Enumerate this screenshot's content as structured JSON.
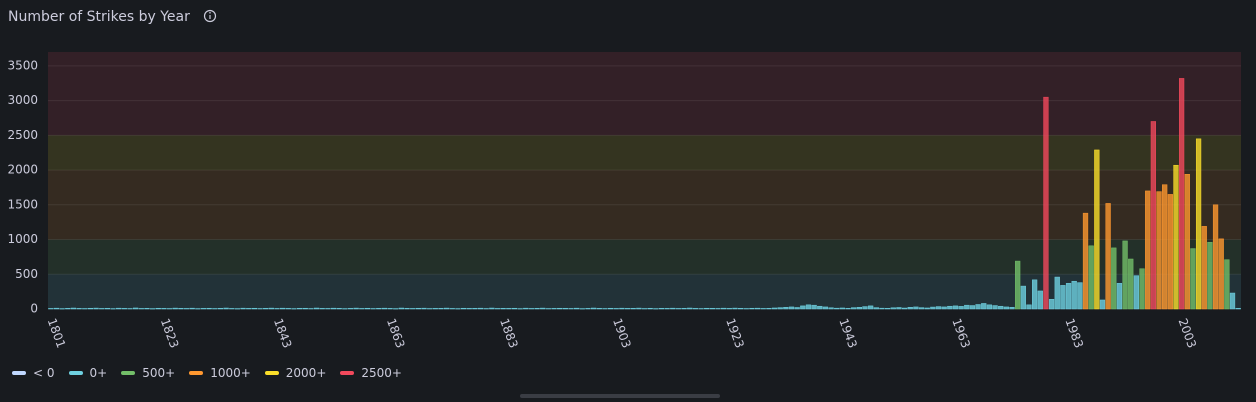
{
  "chart_data": {
    "type": "bar",
    "title": "Number of Strikes by Year",
    "categories": [
      "1801",
      null,
      null,
      null,
      null,
      null,
      null,
      null,
      null,
      null,
      null,
      null,
      null,
      null,
      null,
      null,
      null,
      null,
      null,
      null,
      "1823",
      null,
      null,
      null,
      null,
      null,
      null,
      null,
      null,
      null,
      null,
      null,
      null,
      null,
      null,
      null,
      null,
      null,
      null,
      null,
      "1843",
      null,
      null,
      null,
      null,
      null,
      null,
      null,
      null,
      null,
      null,
      null,
      null,
      null,
      null,
      null,
      null,
      null,
      null,
      null,
      "1863",
      null,
      null,
      null,
      null,
      null,
      null,
      null,
      null,
      null,
      null,
      null,
      null,
      null,
      null,
      null,
      null,
      null,
      null,
      null,
      "1883",
      null,
      null,
      null,
      null,
      null,
      null,
      null,
      null,
      null,
      null,
      null,
      null,
      null,
      null,
      null,
      null,
      null,
      null,
      null,
      "1903",
      null,
      null,
      null,
      null,
      null,
      null,
      null,
      null,
      null,
      null,
      null,
      null,
      null,
      null,
      null,
      null,
      null,
      null,
      null,
      "1923",
      null,
      null,
      null,
      null,
      null,
      null,
      null,
      null,
      null,
      null,
      null,
      null,
      null,
      null,
      null,
      null,
      null,
      null,
      null,
      "1943",
      null,
      null,
      null,
      null,
      null,
      null,
      null,
      null,
      null,
      null,
      null,
      null,
      null,
      null,
      null,
      null,
      null,
      null,
      null,
      "1963",
      null,
      null,
      null,
      null,
      null,
      null,
      null,
      null,
      null,
      null,
      null,
      null,
      null,
      null,
      null,
      null,
      null,
      null,
      null,
      "1983",
      null,
      null,
      null,
      null,
      null,
      null,
      null,
      null,
      null,
      null,
      null,
      null,
      null,
      null,
      null,
      null,
      null,
      null,
      null,
      "2003",
      null,
      null,
      null,
      null,
      null,
      null,
      null,
      null,
      null,
      null
    ],
    "values": [
      8,
      12,
      6,
      10,
      14,
      9,
      7,
      11,
      13,
      8,
      10,
      6,
      12,
      9,
      7,
      15,
      8,
      10,
      6,
      11,
      9,
      7,
      13,
      10,
      8,
      12,
      6,
      9,
      11,
      7,
      10,
      14,
      8,
      6,
      12,
      9,
      11,
      7,
      10,
      13,
      8,
      12,
      9,
      6,
      10,
      11,
      7,
      14,
      9,
      8,
      12,
      10,
      6,
      9,
      13,
      8,
      11,
      7,
      10,
      12,
      9,
      6,
      14,
      10,
      8,
      11,
      12,
      7,
      9,
      10,
      13,
      8,
      6,
      11,
      9,
      10,
      12,
      7,
      14,
      8,
      10,
      9,
      11,
      6,
      12,
      8,
      10,
      13,
      7,
      9,
      11,
      10,
      8,
      12,
      6,
      9,
      14,
      10,
      7,
      11,
      8,
      12,
      9,
      10,
      13,
      7,
      11,
      6,
      10,
      9,
      12,
      8,
      10,
      14,
      9,
      7,
      11,
      10,
      8,
      12,
      9,
      13,
      10,
      7,
      11,
      12,
      8,
      10,
      15,
      20,
      25,
      30,
      22,
      45,
      60,
      55,
      40,
      30,
      18,
      12,
      15,
      10,
      20,
      25,
      35,
      45,
      20,
      12,
      10,
      18,
      22,
      14,
      25,
      30,
      20,
      15,
      28,
      35,
      30,
      40,
      45,
      38,
      55,
      50,
      65,
      80,
      60,
      50,
      40,
      30,
      25,
      690,
      330,
      60,
      420,
      260,
      3050,
      140,
      460,
      340,
      370,
      400,
      380,
      1380,
      910,
      2290,
      130,
      1520,
      880,
      370,
      980,
      720,
      480,
      580,
      1700,
      2700,
      1690,
      1790,
      1650,
      2070,
      3320,
      1940,
      870,
      2450,
      1190,
      960,
      1500,
      1010,
      710,
      230,
      10
    ],
    "ylim": [
      0,
      3700
    ],
    "yticks": [
      0,
      500,
      1000,
      1500,
      2000,
      2500,
      3000,
      3500
    ],
    "legend": [
      {
        "name": "< 0",
        "color": "#c0d8ff"
      },
      {
        "name": "0+",
        "color": "#6ed0e0",
        "min": 0
      },
      {
        "name": "500+",
        "color": "#73bf69",
        "min": 500
      },
      {
        "name": "1000+",
        "color": "#ff9830",
        "min": 1000
      },
      {
        "name": "2000+",
        "color": "#fade2a",
        "min": 2000
      },
      {
        "name": "2500+",
        "color": "#f2495c",
        "min": 2500
      }
    ],
    "grid": true
  }
}
